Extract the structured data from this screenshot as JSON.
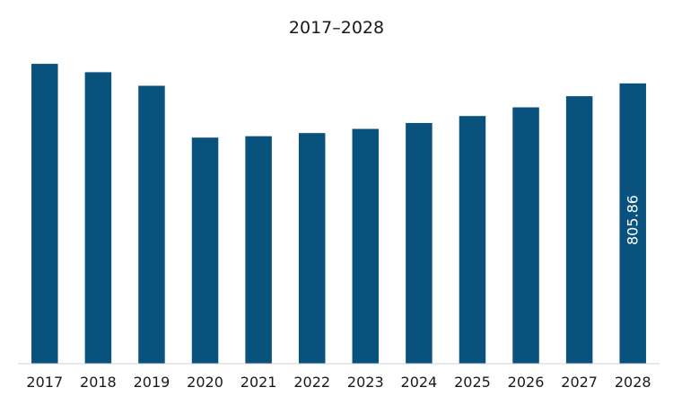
{
  "chart_data": {
    "type": "bar",
    "title": "2017–2028",
    "xlabel": "",
    "ylabel": "",
    "categories": [
      "2017",
      "2018",
      "2019",
      "2020",
      "2021",
      "2022",
      "2023",
      "2024",
      "2025",
      "2026",
      "2027",
      "2028"
    ],
    "values": [
      862,
      838,
      799,
      650,
      654,
      663,
      675,
      692,
      712,
      737,
      769,
      805.86
    ],
    "data_labels": [
      {
        "category": "2028",
        "text": "805.86"
      }
    ],
    "ylim": [
      0,
      870
    ],
    "grid": false,
    "legend": "none",
    "bar_color": "#08527d"
  }
}
